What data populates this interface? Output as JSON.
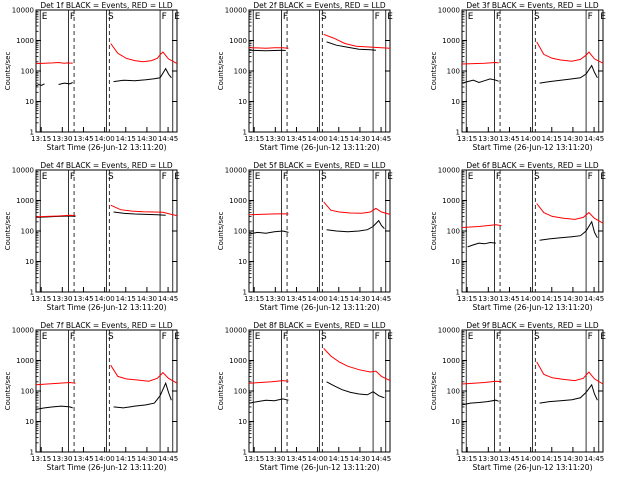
{
  "colors": {
    "events": "#000000",
    "lld": "#ff0000",
    "axis": "#000000"
  },
  "shared": {
    "ylabel": "Counts/sec",
    "xlabel": "Start Time (26-Jun-12 13:11:20)",
    "xticks": [
      "13:15",
      "13:30",
      "13:45",
      "14:00",
      "14:15",
      "14:30",
      "14:45"
    ],
    "yticks": [
      "1",
      "10",
      "100",
      "1000",
      "10000"
    ],
    "ylim": [
      1,
      10000
    ],
    "xlim_minutes_after_13_11_20": [
      0,
      100
    ],
    "yscale": "log"
  },
  "chart_data": [
    {
      "type": "line",
      "title": "Det 1f BLACK = Events, RED = LLD",
      "flags": [
        "E",
        "F",
        "S",
        "F",
        "E"
      ],
      "series": [
        {
          "name": "Events",
          "color": "#000000",
          "segments": [
            {
              "x": [
                0,
                2,
                4,
                6
              ],
              "y": [
                32,
                36,
                34,
                38
              ]
            },
            {
              "x": [
                16,
                20,
                24,
                26
              ],
              "y": [
                36,
                40,
                38,
                42
              ]
            },
            {
              "x": [
                55,
                62,
                70,
                78,
                84,
                88,
                92,
                94,
                96
              ],
              "y": [
                45,
                50,
                48,
                52,
                56,
                60,
                120,
                80,
                60
              ]
            }
          ]
        },
        {
          "name": "LLD",
          "color": "#ff0000",
          "segments": [
            {
              "x": [
                0,
                6,
                12,
                16,
                20,
                22,
                26
              ],
              "y": [
                175,
                180,
                185,
                190,
                180,
                185,
                180
              ]
            },
            {
              "x": [
                53,
                58,
                64,
                70,
                76,
                82,
                86,
                88,
                90,
                94,
                100
              ],
              "y": [
                800,
                380,
                260,
                220,
                200,
                220,
                260,
                340,
                420,
                250,
                175
              ]
            }
          ]
        }
      ]
    },
    {
      "type": "line",
      "title": "Det 2f BLACK = Events, RED = LLD",
      "flags": [
        "E",
        "F",
        "S",
        "F",
        "E"
      ],
      "series": [
        {
          "name": "Events",
          "color": "#000000",
          "segments": [
            {
              "x": [
                0,
                6,
                12,
                18,
                24,
                26
              ],
              "y": [
                480,
                470,
                460,
                470,
                480,
                470
              ]
            },
            {
              "x": [
                55,
                62,
                70,
                78,
                86,
                90
              ],
              "y": [
                900,
                700,
                600,
                520,
                500,
                480
              ]
            }
          ]
        },
        {
          "name": "LLD",
          "color": "#ff0000",
          "segments": [
            {
              "x": [
                0,
                6,
                12,
                18,
                24,
                28
              ],
              "y": [
                580,
                570,
                560,
                580,
                575,
                560
              ]
            },
            {
              "x": [
                53,
                60,
                68,
                76,
                82,
                88,
                94,
                100
              ],
              "y": [
                1600,
                1200,
                800,
                650,
                620,
                600,
                580,
                560
              ]
            }
          ]
        }
      ]
    },
    {
      "type": "line",
      "title": "Det 3f BLACK = Events, RED = LLD",
      "flags": [
        "E",
        "F",
        "S",
        "F",
        "E"
      ],
      "series": [
        {
          "name": "Events",
          "color": "#000000",
          "segments": [
            {
              "x": [
                0,
                4,
                8,
                12,
                16,
                20,
                24,
                26
              ],
              "y": [
                40,
                45,
                50,
                42,
                48,
                55,
                50,
                46
              ]
            },
            {
              "x": [
                55,
                62,
                70,
                78,
                84,
                88,
                92,
                94,
                96
              ],
              "y": [
                40,
                45,
                50,
                55,
                60,
                80,
                150,
                90,
                60
              ]
            }
          ]
        },
        {
          "name": "LLD",
          "color": "#ff0000",
          "segments": [
            {
              "x": [
                0,
                8,
                16,
                24,
                26
              ],
              "y": [
                170,
                175,
                180,
                190,
                185
              ]
            },
            {
              "x": [
                53,
                58,
                64,
                70,
                78,
                84,
                88,
                90,
                94,
                100
              ],
              "y": [
                900,
                350,
                260,
                230,
                210,
                240,
                330,
                420,
                250,
                180
              ]
            }
          ]
        }
      ]
    },
    {
      "type": "line",
      "title": "Det 4f BLACK = Events, RED = LLD",
      "flags": [
        "E",
        "F",
        "S",
        "F",
        "E"
      ],
      "series": [
        {
          "name": "Events",
          "color": "#000000",
          "segments": [
            {
              "x": [
                0,
                8,
                16,
                24,
                28
              ],
              "y": [
                280,
                290,
                300,
                310,
                300
              ]
            },
            {
              "x": [
                55,
                62,
                70,
                78,
                86,
                92
              ],
              "y": [
                420,
                380,
                360,
                350,
                340,
                330
              ]
            }
          ]
        },
        {
          "name": "LLD",
          "color": "#ff0000",
          "segments": [
            {
              "x": [
                0,
                8,
                16,
                24,
                28
              ],
              "y": [
                290,
                300,
                310,
                330,
                320
              ]
            },
            {
              "x": [
                53,
                60,
                68,
                76,
                84,
                90,
                96,
                100
              ],
              "y": [
                700,
                500,
                450,
                430,
                420,
                410,
                350,
                320
              ]
            }
          ]
        }
      ]
    },
    {
      "type": "line",
      "title": "Det 5f BLACK = Events, RED = LLD",
      "flags": [
        "E",
        "F",
        "S",
        "F",
        "E"
      ],
      "series": [
        {
          "name": "Events",
          "color": "#000000",
          "segments": [
            {
              "x": [
                0,
                6,
                12,
                18,
                24,
                28
              ],
              "y": [
                80,
                90,
                85,
                95,
                100,
                90
              ]
            },
            {
              "x": [
                55,
                62,
                70,
                78,
                84,
                88,
                92,
                94,
                96
              ],
              "y": [
                110,
                100,
                95,
                100,
                110,
                140,
                220,
                150,
                120
              ]
            }
          ]
        },
        {
          "name": "LLD",
          "color": "#ff0000",
          "segments": [
            {
              "x": [
                0,
                8,
                16,
                24,
                28
              ],
              "y": [
                340,
                350,
                360,
                370,
                360
              ]
            },
            {
              "x": [
                53,
                58,
                64,
                72,
                80,
                86,
                90,
                94,
                100
              ],
              "y": [
                900,
                480,
                420,
                390,
                380,
                420,
                550,
                420,
                350
              ]
            }
          ]
        }
      ]
    },
    {
      "type": "line",
      "title": "Det 6f BLACK = Events, RED = LLD",
      "flags": [
        "E",
        "F",
        "S",
        "F",
        "E"
      ],
      "series": [
        {
          "name": "Events",
          "color": "#000000",
          "segments": [
            {
              "x": [
                4,
                8,
                12,
                16,
                20,
                24
              ],
              "y": [
                30,
                35,
                40,
                38,
                42,
                40
              ]
            },
            {
              "x": [
                55,
                62,
                70,
                78,
                84,
                88,
                92,
                94,
                96
              ],
              "y": [
                50,
                55,
                60,
                65,
                70,
                100,
                200,
                90,
                60
              ]
            }
          ]
        },
        {
          "name": "LLD",
          "color": "#ff0000",
          "segments": [
            {
              "x": [
                0,
                6,
                12,
                18,
                24,
                28
              ],
              "y": [
                130,
                135,
                140,
                150,
                160,
                150
              ]
            },
            {
              "x": [
                53,
                58,
                64,
                72,
                80,
                86,
                90,
                94,
                100
              ],
              "y": [
                800,
                400,
                300,
                260,
                240,
                280,
                400,
                260,
                180
              ]
            }
          ]
        }
      ]
    },
    {
      "type": "line",
      "title": "Det 7f BLACK = Events, RED = LLD",
      "flags": [
        "E",
        "F",
        "S",
        "F",
        "E"
      ],
      "series": [
        {
          "name": "Events",
          "color": "#000000",
          "segments": [
            {
              "x": [
                0,
                6,
                12,
                18,
                24,
                26
              ],
              "y": [
                25,
                28,
                30,
                32,
                30,
                28
              ]
            },
            {
              "x": [
                55,
                62,
                70,
                78,
                84,
                88,
                92,
                94,
                96
              ],
              "y": [
                30,
                28,
                32,
                35,
                40,
                70,
                180,
                90,
                50
              ]
            }
          ]
        },
        {
          "name": "LLD",
          "color": "#ff0000",
          "segments": [
            {
              "x": [
                0,
                8,
                16,
                24,
                28
              ],
              "y": [
                160,
                170,
                180,
                190,
                180
              ]
            },
            {
              "x": [
                53,
                58,
                64,
                72,
                80,
                86,
                90,
                94,
                100
              ],
              "y": [
                700,
                300,
                250,
                230,
                210,
                260,
                400,
                260,
                180
              ]
            }
          ]
        }
      ]
    },
    {
      "type": "line",
      "title": "Det 8f BLACK = Events, RED = LLD",
      "flags": [
        "E",
        "F",
        "S",
        "F",
        "E"
      ],
      "series": [
        {
          "name": "Events",
          "color": "#000000",
          "segments": [
            {
              "x": [
                0,
                6,
                12,
                18,
                24,
                28
              ],
              "y": [
                40,
                45,
                50,
                48,
                55,
                50
              ]
            },
            {
              "x": [
                55,
                60,
                66,
                72,
                78,
                84,
                88,
                92,
                96
              ],
              "y": [
                200,
                150,
                110,
                90,
                80,
                75,
                95,
                70,
                60
              ]
            }
          ]
        },
        {
          "name": "LLD",
          "color": "#ff0000",
          "segments": [
            {
              "x": [
                0,
                8,
                16,
                24,
                28
              ],
              "y": [
                180,
                190,
                200,
                220,
                210
              ]
            },
            {
              "x": [
                53,
                58,
                64,
                70,
                78,
                86,
                90,
                94,
                100
              ],
              "y": [
                2500,
                1400,
                900,
                650,
                500,
                420,
                450,
                300,
                220
              ]
            }
          ]
        }
      ]
    },
    {
      "type": "line",
      "title": "Det 9f BLACK = Events, RED = LLD",
      "flags": [
        "E",
        "F",
        "S",
        "F",
        "E"
      ],
      "series": [
        {
          "name": "Events",
          "color": "#000000",
          "segments": [
            {
              "x": [
                0,
                6,
                12,
                18,
                24,
                26
              ],
              "y": [
                35,
                40,
                42,
                45,
                50,
                46
              ]
            },
            {
              "x": [
                55,
                62,
                70,
                78,
                84,
                88,
                92,
                94,
                96
              ],
              "y": [
                40,
                45,
                48,
                52,
                60,
                90,
                160,
                80,
                50
              ]
            }
          ]
        },
        {
          "name": "LLD",
          "color": "#ff0000",
          "segments": [
            {
              "x": [
                0,
                8,
                16,
                24,
                28
              ],
              "y": [
                170,
                180,
                190,
                210,
                200
              ]
            },
            {
              "x": [
                53,
                58,
                64,
                72,
                80,
                86,
                90,
                94,
                100
              ],
              "y": [
                900,
                350,
                270,
                240,
                220,
                260,
                420,
                250,
                170
              ]
            }
          ]
        }
      ]
    }
  ]
}
